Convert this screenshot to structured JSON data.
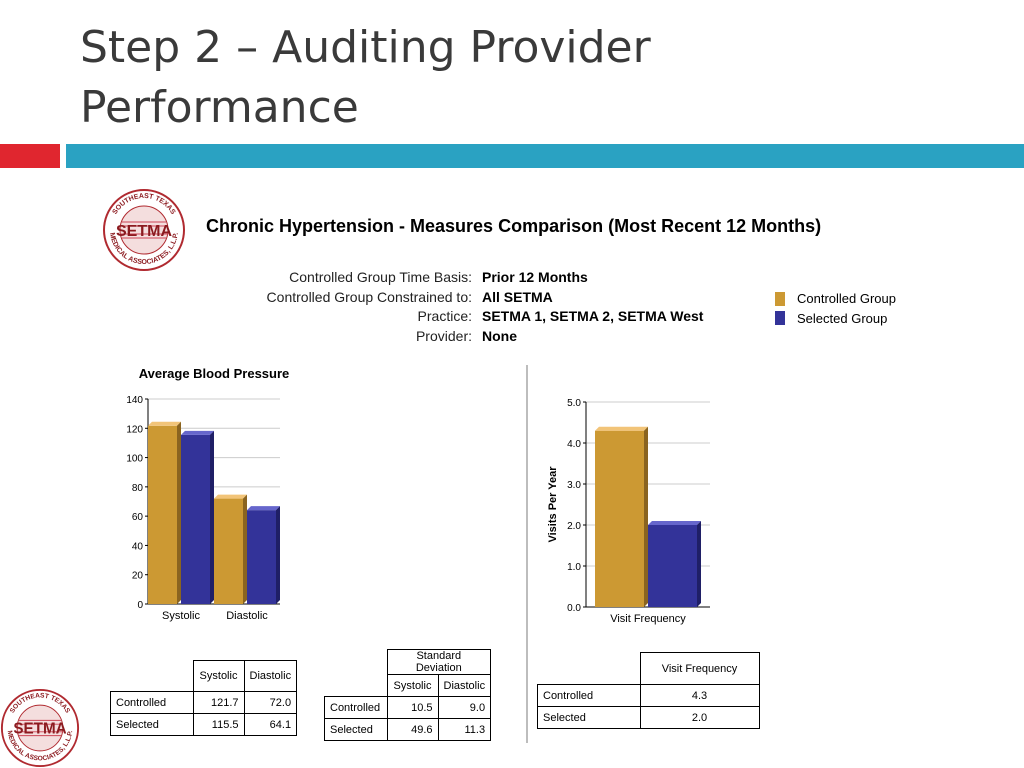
{
  "slide": {
    "title_line1": "Step 2 – Auditing Provider",
    "title_line2": "Performance"
  },
  "colors": {
    "red": "#e0262f",
    "teal": "#2aa2c2",
    "controlled": "#cc9933",
    "selected": "#333399"
  },
  "logo": {
    "text": "SETMA",
    "ring_text": "SOUTHEAST TEXAS MEDICAL ASSOCIATES, L.L.P."
  },
  "report": {
    "title": "Chronic Hypertension -  Measures Comparison (Most Recent 12 Months)",
    "meta": [
      {
        "label": "Controlled Group Time Basis:",
        "value": "Prior 12 Months"
      },
      {
        "label": "Controlled Group Constrained to:",
        "value": "All SETMA"
      },
      {
        "label": "Practice:",
        "value": "SETMA 1, SETMA 2, SETMA West"
      },
      {
        "label": "Provider:",
        "value": "None"
      }
    ],
    "legend": [
      {
        "name": "Controlled Group",
        "color": "#cc9933"
      },
      {
        "name": "Selected Group",
        "color": "#333399"
      }
    ]
  },
  "chart_data": [
    {
      "type": "bar",
      "title": "Average Blood Pressure",
      "xlabel": "",
      "ylabel": "",
      "categories": [
        "Systolic",
        "Diastolic"
      ],
      "series": [
        {
          "name": "Controlled Group",
          "values": [
            121.7,
            72.0
          ]
        },
        {
          "name": "Selected Group",
          "values": [
            115.5,
            64.1
          ]
        }
      ],
      "ylim": [
        0,
        140
      ],
      "yticks": [
        0,
        20,
        40,
        60,
        80,
        100,
        120,
        140
      ],
      "ytick_labels": [
        "0",
        "20",
        "40",
        "60",
        "80",
        "100",
        "120",
        "140"
      ],
      "grid": true,
      "legend": "right"
    },
    {
      "type": "bar",
      "title": "",
      "xlabel": "",
      "ylabel": "Visits Per Year",
      "categories": [
        "Visit Frequency"
      ],
      "series": [
        {
          "name": "Controlled Group",
          "values": [
            4.3
          ]
        },
        {
          "name": "Selected Group",
          "values": [
            2.0
          ]
        }
      ],
      "ylim": [
        0,
        5.0
      ],
      "yticks": [
        0,
        1,
        2,
        3,
        4,
        5
      ],
      "ytick_labels": [
        "0.0",
        "1.0",
        "2.0",
        "3.0",
        "4.0",
        "5.0"
      ],
      "grid": true,
      "legend": "right"
    }
  ],
  "tables": {
    "bp": {
      "headers": [
        "Systolic",
        "Diastolic"
      ],
      "rows": [
        {
          "label": "Controlled",
          "values": [
            "121.7",
            "72.0"
          ]
        },
        {
          "label": "Selected",
          "values": [
            "115.5",
            "64.1"
          ]
        }
      ]
    },
    "sd": {
      "group_header": "Standard Deviation",
      "headers": [
        "Systolic",
        "Diastolic"
      ],
      "rows": [
        {
          "label": "Controlled",
          "values": [
            "10.5",
            "9.0"
          ]
        },
        {
          "label": "Selected",
          "values": [
            "49.6",
            "11.3"
          ]
        }
      ]
    },
    "visits": {
      "headers": [
        "Visit Frequency"
      ],
      "rows": [
        {
          "label": "Controlled",
          "values": [
            "4.3"
          ]
        },
        {
          "label": "Selected",
          "values": [
            "2.0"
          ]
        }
      ]
    }
  }
}
